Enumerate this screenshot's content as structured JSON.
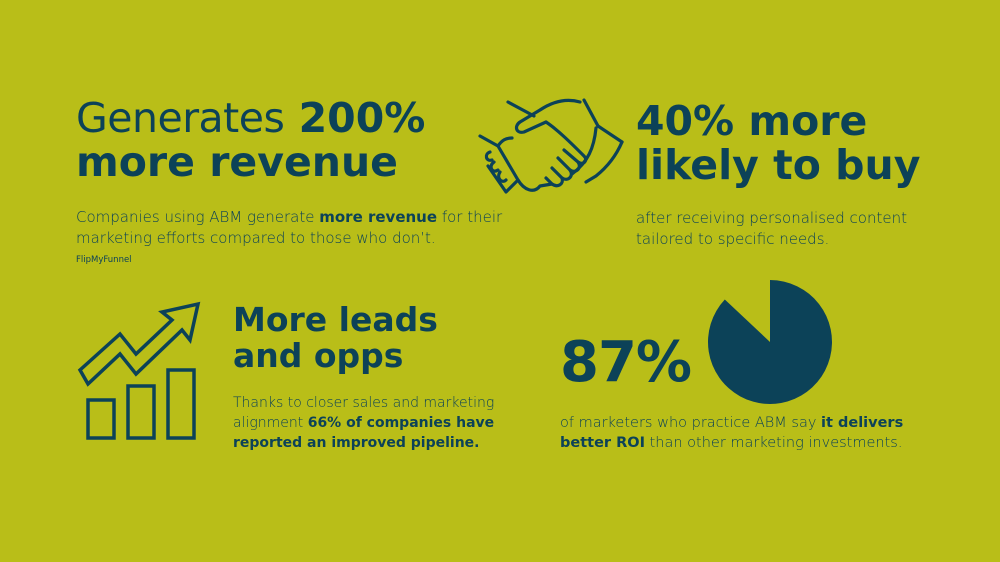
{
  "revenue": {
    "headline_light": "Generates",
    "headline_bold_1": "200%",
    "headline_bold_2": "more revenue",
    "body_pre": "Companies using ABM generate",
    "body_bold": "more revenue",
    "body_post": "for their marketing efforts compared to those who don’t.",
    "source": "FlipMyFunnel",
    "icon": "handshake-icon"
  },
  "buy": {
    "headline_line1": "40% more",
    "headline_line2": "likely to buy",
    "body": "after receiving personalised content tailored to specific needs.",
    "icon": "handshake-icon"
  },
  "leads": {
    "headline_line1": "More leads",
    "headline_line2": "and opps",
    "body_pre": "Thanks to closer sales and marketing alignment",
    "body_bold": "66% of companies have reported an improved pipeline.",
    "icon": "growth-bar-chart-icon"
  },
  "roi": {
    "percent_label": "87%",
    "percent_value": 87,
    "body_pre": "of marketers who practice ABM say",
    "body_bold": "it delivers better ROI",
    "body_post": "than other marketing investments.",
    "icon": "pie-chart-icon"
  },
  "colors": {
    "background": "#b9be18",
    "text": "#0c4258",
    "accent": "#0c4258"
  }
}
